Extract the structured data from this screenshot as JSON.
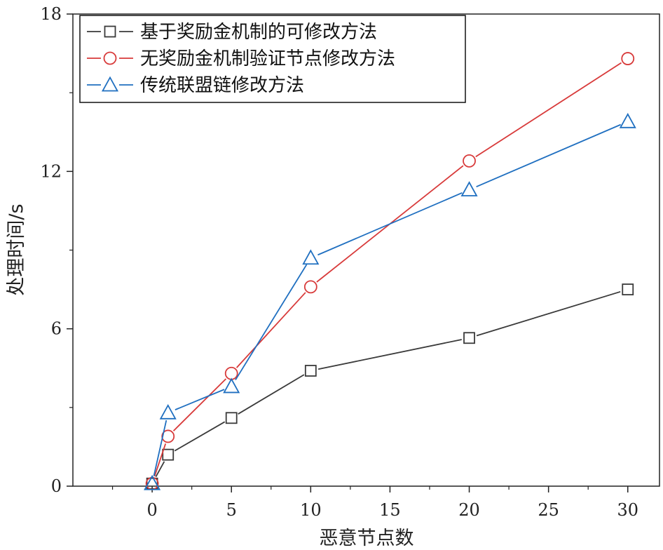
{
  "chart_data": {
    "type": "line",
    "xlabel": "恶意节点数",
    "ylabel": "处理时间/s",
    "xlim": [
      -5,
      32
    ],
    "ylim": [
      0,
      18
    ],
    "xticks": [
      0,
      5,
      10,
      15,
      20,
      25,
      30
    ],
    "yticks": [
      0,
      6,
      12,
      18
    ],
    "x": [
      0,
      1,
      5,
      10,
      20,
      30
    ],
    "legend_position": "top-left",
    "grid": false,
    "series": [
      {
        "name": "基于奖励金机制的可修改方法",
        "marker": "square",
        "color": "#3a3a3a",
        "values": [
          0.1,
          1.2,
          2.6,
          4.4,
          5.65,
          7.5
        ]
      },
      {
        "name": "无奖励金机制验证节点修改方法",
        "marker": "circle",
        "color": "#d83a3a",
        "values": [
          0.1,
          1.9,
          4.3,
          7.6,
          12.4,
          16.3
        ]
      },
      {
        "name": "传统联盟链修改方法",
        "marker": "triangle",
        "color": "#1f6fc0",
        "values": [
          0.1,
          2.8,
          3.8,
          8.7,
          11.3,
          13.9
        ]
      }
    ]
  }
}
